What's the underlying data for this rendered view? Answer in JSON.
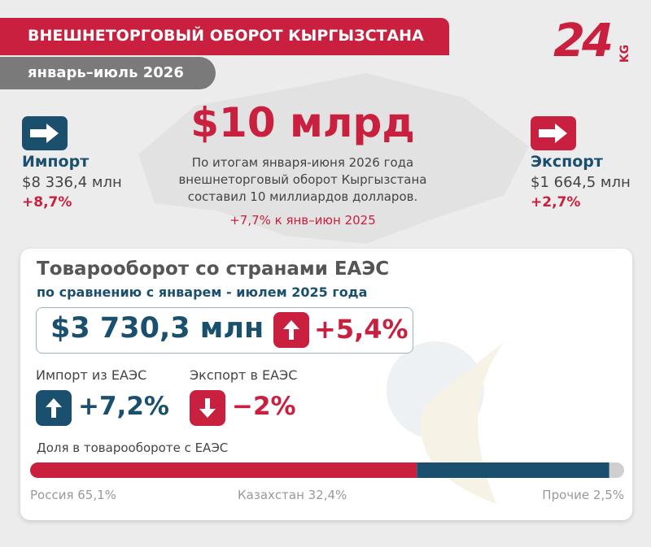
{
  "header": {
    "title": "ВНЕШНЕТОРГОВЫЙ ОБОРОТ КЫРГЫЗСТАНА",
    "period": "январь–июль 2026",
    "logo": "24",
    "logo_suffix": "KG"
  },
  "total": {
    "value_text": "$10 млрд",
    "description": [
      "По итогам января-июня 2026 года",
      "внешнеторговый оборот Кыргызстана",
      "составил 10 миллиардов долларов."
    ],
    "change": "+7,7% к янв–июн 2025"
  },
  "import": {
    "label": "Импорт",
    "amount": "$8 336,4 млн",
    "change": "+8,7%"
  },
  "export": {
    "label": "Экспорт",
    "amount": "$1 664,5 млн",
    "change": "+2,7%"
  },
  "eaeu": {
    "title": "Товарооборот со странами ЕАЭС",
    "subtitle": "по сравнению с январем - июлем 2025 года",
    "amount": "$3 730,3 млн",
    "change": "+5,4%",
    "import_label": "Импорт из ЕАЭС",
    "import_change": "+7,2%",
    "export_label": "Экспорт в ЕАЭС",
    "export_change": "−2%"
  },
  "share": {
    "title": "Доля в товарообороте с ЕАЭС",
    "items": [
      {
        "label": "Россия 65,1%",
        "value": 65.1,
        "color": "#c8203e"
      },
      {
        "label": "Казахстан 32,4%",
        "value": 32.4,
        "color": "#1b4f6e"
      },
      {
        "label": "Прочие 2,5%",
        "value": 2.5,
        "color": "#cfcfcf"
      }
    ]
  }
}
